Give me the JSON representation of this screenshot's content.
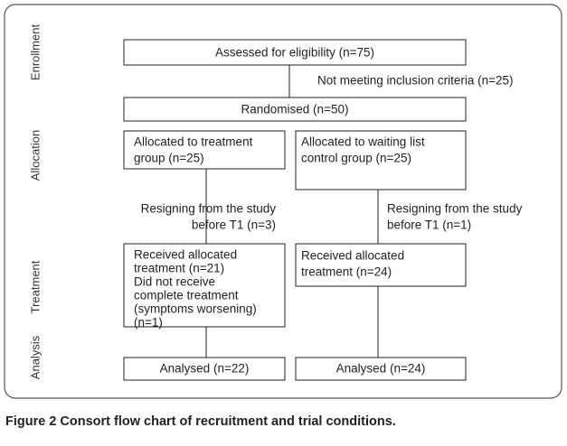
{
  "stages": [
    "Enrollment",
    "Allocation",
    "Treatment",
    "Analysis"
  ],
  "nodes": [
    {
      "lines": [
        "Assessed for eligibility (n=75)"
      ]
    },
    {
      "lines": [
        "Randomised (n=50)"
      ]
    },
    {
      "lines": [
        "Allocated to treatment",
        "group (n=25)"
      ]
    },
    {
      "lines": [
        "Allocated to waiting list",
        "control group (n=25)"
      ]
    },
    {
      "lines": [
        "Received allocated",
        "treatment (n=21)",
        "Did not receive",
        "complete treatment",
        "(symptoms worsening)",
        "(n=1)"
      ]
    },
    {
      "lines": [
        "Received allocated",
        "treatment (n=24)"
      ]
    },
    {
      "lines": [
        "Analysed (n=22)"
      ]
    },
    {
      "lines": [
        "Analysed (n=24)"
      ]
    }
  ],
  "notes": [
    {
      "lines": [
        "Not meeting inclusion criteria (n=25)"
      ]
    },
    {
      "lines": [
        "Resigning from the study",
        "before T1 (n=3)"
      ]
    },
    {
      "lines": [
        "Resigning from the study",
        "before T1 (n=1)"
      ]
    }
  ],
  "caption": "Figure 2 Consort flow chart of recruitment and trial conditions."
}
